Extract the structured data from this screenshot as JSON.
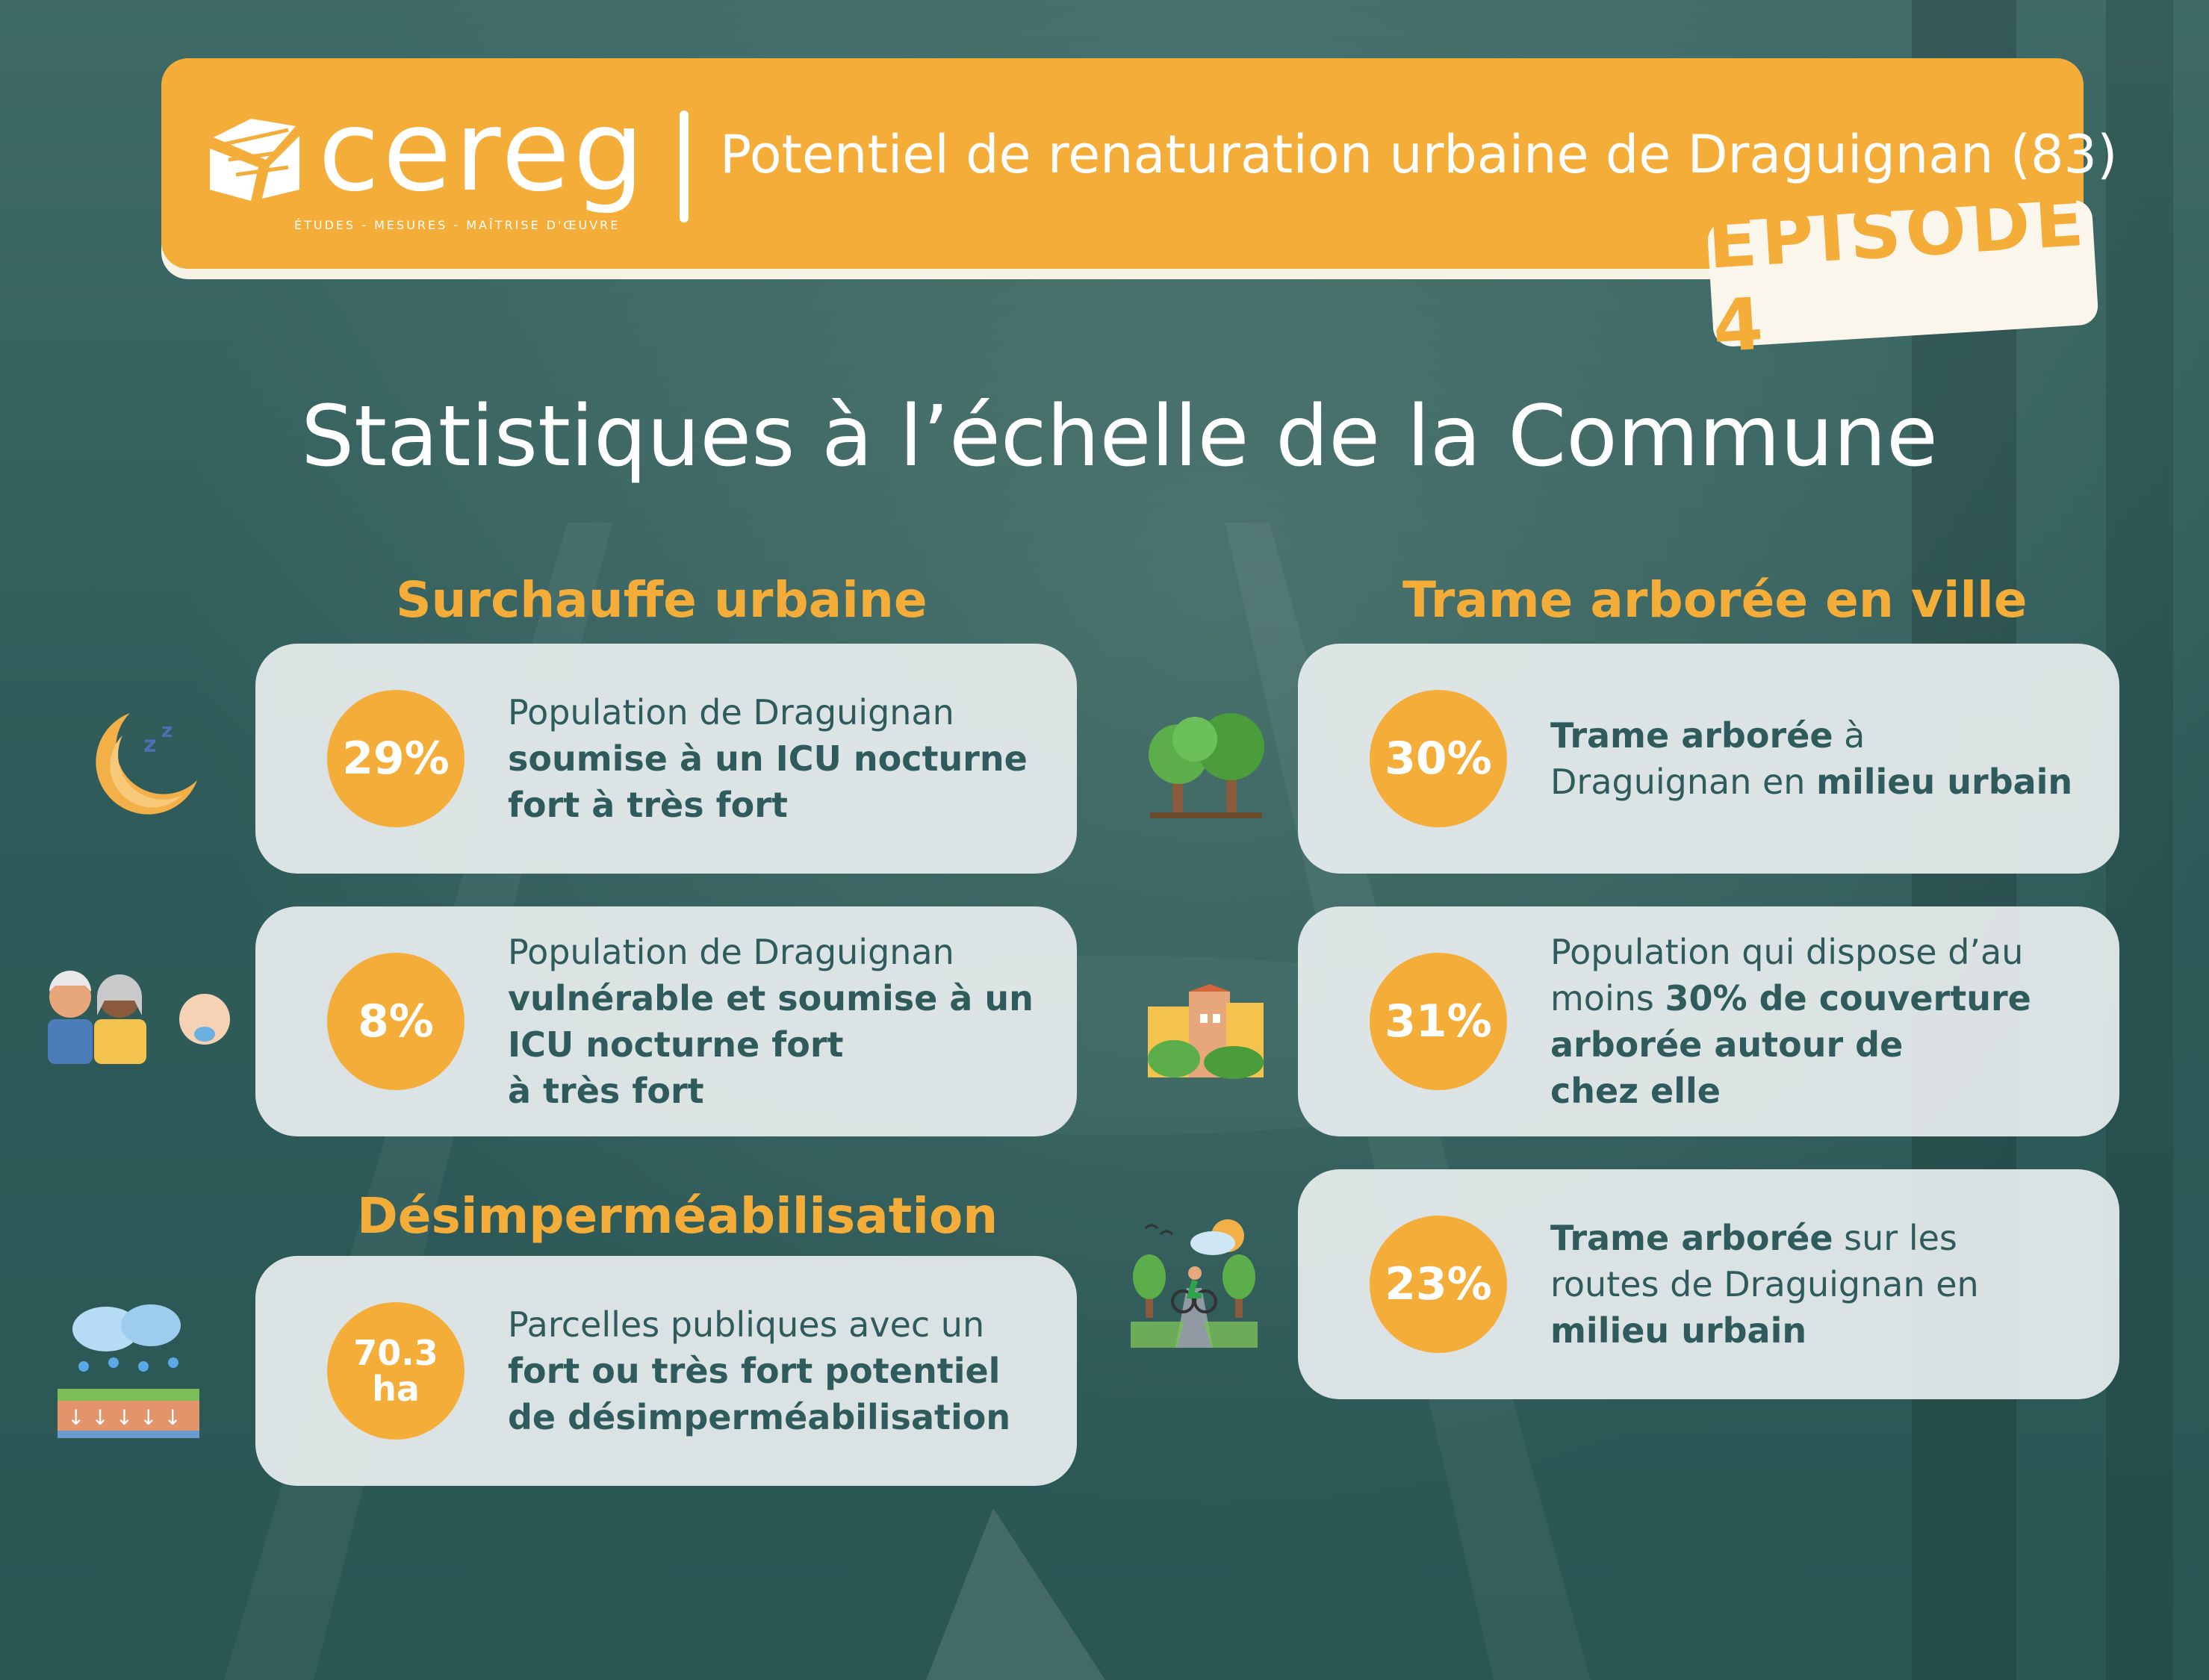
{
  "colors": {
    "accent": "#f5ad3a",
    "text_dark": "#2f5b5c",
    "card_bg": "#e8edee",
    "background": "#2f5c5a"
  },
  "header": {
    "logo_text": "cereg",
    "logo_subtitle": "ÉTUDES - MESURES - MAÎTRISE D'ŒUVRE",
    "title": "Potentiel de renaturation urbaine de Draguignan (83)",
    "episode": "ÉPISODE 4"
  },
  "main_title": "Statistiques à l’échelle de la Commune",
  "left": {
    "section1_title": "Surchauffe urbaine",
    "card1": {
      "value": "29%",
      "icon": "moon-sleep-icon",
      "text_plain": "Population de Draguignan",
      "text_bold_1": "soumise à un ICU nocturne",
      "text_bold_2": "fort à très fort"
    },
    "card2": {
      "value": "8%",
      "icon": "vulnerable-people-icon",
      "text_plain": "Population de Draguignan",
      "text_bold_1": "vulnérable et soumise à un",
      "text_bold_2": "ICU nocturne fort",
      "text_bold_3": "à très fort"
    },
    "section2_title": "Désimperméabilisation",
    "card3": {
      "value_line1": "70.3",
      "value_line2": "ha",
      "icon": "rain-soil-icon",
      "text_plain": "Parcelles publiques avec un",
      "text_bold_1": "fort ou très fort potentiel",
      "text_bold_2": "de désimperméabilisation"
    }
  },
  "right": {
    "section_title": "Trame arborée en ville",
    "card1": {
      "value": "30%",
      "icon": "trees-icon",
      "bold_a": "Trame arborée",
      "plain_a": " à",
      "plain_b": "Draguignan en ",
      "bold_b": "milieu urbain"
    },
    "card2": {
      "value": "31%",
      "icon": "houses-greenery-icon",
      "plain_a": "Population qui dispose d’au",
      "plain_b": "moins ",
      "bold_a": "30% de couverture",
      "bold_b": "arborée autour de",
      "bold_c": "chez elle"
    },
    "card3": {
      "value": "23%",
      "icon": "cyclist-road-icon",
      "bold_a": "Trame arborée",
      "plain_a": " sur les",
      "plain_b": "routes de Draguignan en",
      "bold_b": "milieu urbain"
    }
  }
}
